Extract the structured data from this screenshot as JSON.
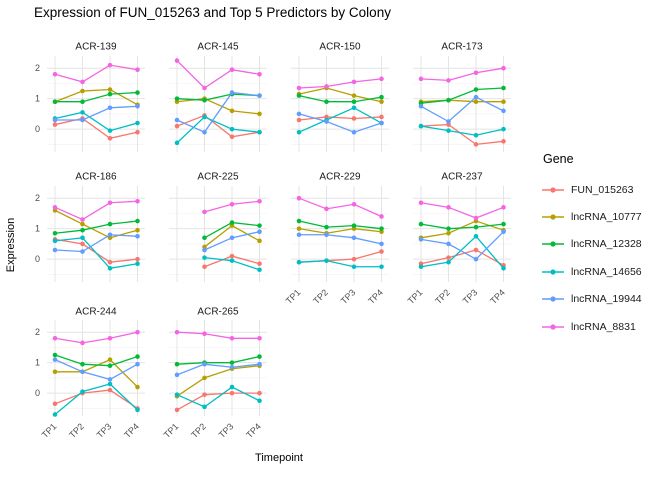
{
  "title": "Expression of FUN_015263 and Top 5 Predictors by Colony",
  "chart_data": {
    "type": "line",
    "facet_by": "Colony",
    "x": [
      "TP1",
      "TP2",
      "TP3",
      "TP4"
    ],
    "xlabel": "Timepoint",
    "ylabel": "Expression",
    "ylim": [
      -0.75,
      2.4
    ],
    "yticks": [
      0,
      1,
      2
    ],
    "grid": true,
    "legend_title": "Gene",
    "legend_position": "right",
    "series": [
      {
        "name": "FUN_015263",
        "color": "#F8766D"
      },
      {
        "name": "lncRNA_10777",
        "color": "#B79F00"
      },
      {
        "name": "lncRNA_12328",
        "color": "#00BA38"
      },
      {
        "name": "lncRNA_14656",
        "color": "#00BFC4"
      },
      {
        "name": "lncRNA_19944",
        "color": "#619CFF"
      },
      {
        "name": "lncRNA_8831",
        "color": "#F564E3"
      }
    ],
    "facets": [
      {
        "label": "ACR-139",
        "values": {
          "FUN_015263": [
            0.15,
            0.35,
            -0.3,
            -0.1
          ],
          "lncRNA_10777": [
            0.9,
            1.25,
            1.3,
            0.8
          ],
          "lncRNA_12328": [
            0.9,
            0.9,
            1.15,
            1.2
          ],
          "lncRNA_14656": [
            0.35,
            0.55,
            -0.05,
            0.2
          ],
          "lncRNA_19944": [
            0.3,
            0.3,
            0.7,
            0.75
          ],
          "lncRNA_8831": [
            1.8,
            1.55,
            2.1,
            1.95
          ]
        }
      },
      {
        "label": "ACR-145",
        "values": {
          "FUN_015263": [
            0.1,
            0.45,
            -0.25,
            -0.1
          ],
          "lncRNA_10777": [
            0.9,
            1.0,
            0.6,
            0.5
          ],
          "lncRNA_12328": [
            1.0,
            0.95,
            1.15,
            1.1
          ],
          "lncRNA_14656": [
            -0.45,
            0.4,
            0.0,
            -0.1
          ],
          "lncRNA_19944": [
            0.3,
            -0.1,
            1.2,
            1.1
          ],
          "lncRNA_8831": [
            2.25,
            1.35,
            1.95,
            1.8
          ]
        }
      },
      {
        "label": "ACR-150",
        "values": {
          "FUN_015263": [
            0.3,
            0.4,
            0.35,
            0.4
          ],
          "lncRNA_10777": [
            1.15,
            1.35,
            1.1,
            0.9
          ],
          "lncRNA_12328": [
            1.1,
            0.9,
            0.9,
            1.05
          ],
          "lncRNA_14656": [
            -0.1,
            0.3,
            0.7,
            0.2
          ],
          "lncRNA_19944": [
            0.5,
            0.25,
            -0.1,
            0.2
          ],
          "lncRNA_8831": [
            1.35,
            1.4,
            1.55,
            1.65
          ]
        }
      },
      {
        "label": "ACR-173",
        "values": {
          "FUN_015263": [
            0.1,
            0.15,
            -0.5,
            -0.4
          ],
          "lncRNA_10777": [
            0.9,
            0.95,
            0.9,
            0.9
          ],
          "lncRNA_12328": [
            0.85,
            0.95,
            1.3,
            1.35
          ],
          "lncRNA_14656": [
            0.1,
            -0.05,
            -0.2,
            0.0
          ],
          "lncRNA_19944": [
            0.75,
            0.25,
            1.05,
            0.6
          ],
          "lncRNA_8831": [
            1.65,
            1.6,
            1.85,
            2.0
          ]
        }
      },
      {
        "label": "ACR-186",
        "values": {
          "FUN_015263": [
            0.65,
            0.5,
            -0.1,
            0.0
          ],
          "lncRNA_10777": [
            1.6,
            1.15,
            0.7,
            0.95
          ],
          "lncRNA_12328": [
            0.85,
            0.95,
            1.15,
            1.25
          ],
          "lncRNA_14656": [
            0.6,
            0.7,
            -0.3,
            -0.15
          ],
          "lncRNA_19944": [
            0.3,
            0.25,
            0.8,
            0.75
          ],
          "lncRNA_8831": [
            1.7,
            1.3,
            1.85,
            1.9
          ]
        }
      },
      {
        "label": "ACR-225",
        "values": {
          "FUN_015263": [
            null,
            -0.25,
            0.1,
            -0.15
          ],
          "lncRNA_10777": [
            null,
            0.4,
            1.1,
            0.6
          ],
          "lncRNA_12328": [
            null,
            0.7,
            1.2,
            1.1
          ],
          "lncRNA_14656": [
            null,
            0.05,
            -0.05,
            -0.35
          ],
          "lncRNA_19944": [
            null,
            0.3,
            0.7,
            0.9
          ],
          "lncRNA_8831": [
            null,
            1.55,
            1.8,
            1.9
          ]
        }
      },
      {
        "label": "ACR-229",
        "values": {
          "FUN_015263": [
            -0.1,
            -0.05,
            0.0,
            0.25
          ],
          "lncRNA_10777": [
            1.0,
            0.85,
            1.0,
            0.9
          ],
          "lncRNA_12328": [
            1.25,
            1.05,
            1.1,
            1.0
          ],
          "lncRNA_14656": [
            -0.1,
            -0.05,
            -0.25,
            -0.25
          ],
          "lncRNA_19944": [
            0.8,
            0.8,
            0.7,
            0.5
          ],
          "lncRNA_8831": [
            2.0,
            1.65,
            1.8,
            1.4
          ]
        }
      },
      {
        "label": "ACR-237",
        "values": {
          "FUN_015263": [
            -0.15,
            0.05,
            0.3,
            -0.2
          ],
          "lncRNA_10777": [
            0.7,
            0.85,
            1.25,
            0.95
          ],
          "lncRNA_12328": [
            1.15,
            1.0,
            1.05,
            1.15
          ],
          "lncRNA_14656": [
            -0.25,
            -0.1,
            0.75,
            -0.3
          ],
          "lncRNA_19944": [
            0.65,
            0.5,
            0.0,
            0.9
          ],
          "lncRNA_8831": [
            1.85,
            1.7,
            1.35,
            1.7
          ]
        }
      },
      {
        "label": "ACR-244",
        "values": {
          "FUN_015263": [
            -0.35,
            0.0,
            0.1,
            -0.5
          ],
          "lncRNA_10777": [
            0.7,
            0.7,
            1.1,
            0.2
          ],
          "lncRNA_12328": [
            1.25,
            0.95,
            0.9,
            1.2
          ],
          "lncRNA_14656": [
            -0.7,
            0.05,
            0.3,
            -0.55
          ],
          "lncRNA_19944": [
            1.1,
            0.7,
            0.45,
            0.95
          ],
          "lncRNA_8831": [
            1.8,
            1.65,
            1.8,
            2.0
          ]
        }
      },
      {
        "label": "ACR-265",
        "values": {
          "FUN_015263": [
            -0.55,
            -0.05,
            0.0,
            0.0
          ],
          "lncRNA_10777": [
            -0.1,
            0.5,
            0.8,
            0.9
          ],
          "lncRNA_12328": [
            0.95,
            1.0,
            1.0,
            1.2
          ],
          "lncRNA_14656": [
            -0.05,
            -0.45,
            0.2,
            -0.25
          ],
          "lncRNA_19944": [
            0.6,
            0.95,
            0.85,
            0.95
          ],
          "lncRNA_8831": [
            2.0,
            1.95,
            1.8,
            1.8
          ]
        }
      }
    ]
  }
}
